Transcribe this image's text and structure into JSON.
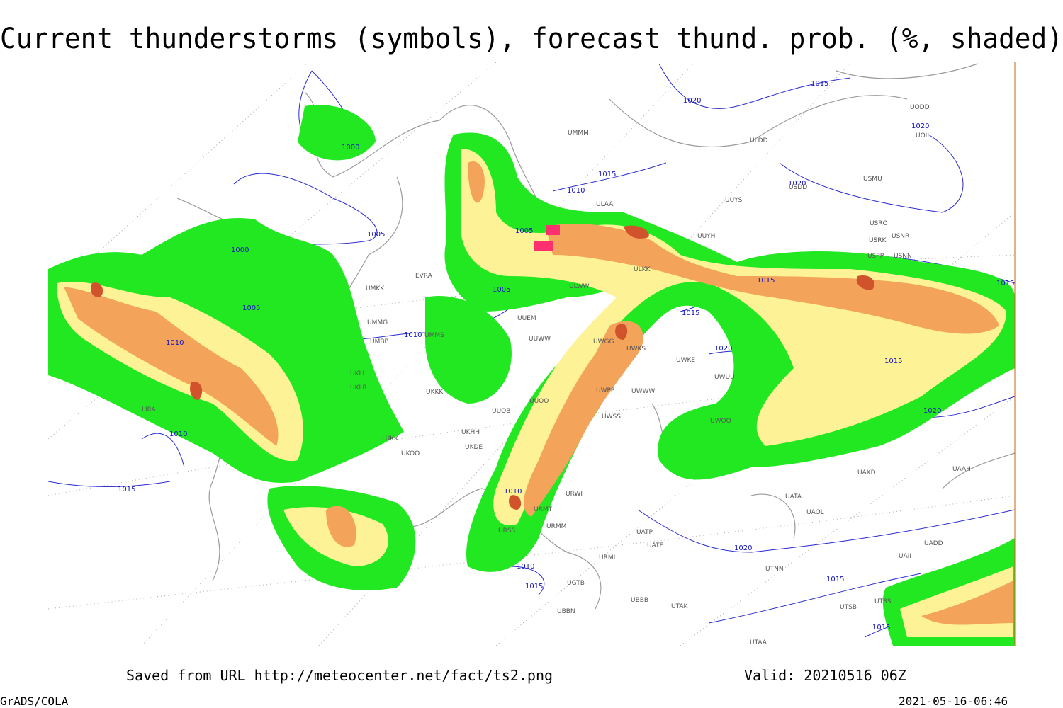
{
  "title": "Current thunderstorms (symbols), forecast thund. prob. (%, shaded)",
  "footer": {
    "source": "Saved from URL http://meteocenter.net/fact/ts2.png",
    "valid": "Valid: 20210516 06Z",
    "software": "GrADS/COLA",
    "timestamp": "2021-05-16-06:46"
  },
  "map": {
    "isobar_labels": [
      1000,
      1005,
      1000,
      1005,
      1010,
      1010,
      1010,
      1015,
      1020,
      1015,
      1020,
      1020,
      1005,
      1005,
      1015,
      1015,
      1015,
      1020,
      1015,
      1020,
      1010,
      1015,
      1010,
      1010,
      1015,
      1020,
      1015,
      1015
    ],
    "stations": [
      "ULDD",
      "USDD",
      "USMU",
      "UUYS",
      "UUYH",
      "USRO",
      "USRK",
      "USNR",
      "USPP",
      "USNN",
      "UODD",
      "UOII",
      "ULAA",
      "ULWW",
      "ULKK",
      "UUEM",
      "UUWW",
      "UMKK",
      "UMMG",
      "UMBB",
      "UMMS",
      "UKLL",
      "UKLR",
      "UKKK",
      "UUOB",
      "UUOO",
      "UKHH",
      "UKDE",
      "LIRA",
      "LUKK",
      "UKOO",
      "URWI",
      "URMT",
      "URMM",
      "URSS",
      "URML",
      "UATP",
      "UATE",
      "UATA",
      "UAOL",
      "UAAH",
      "UAKD",
      "UAII",
      "UADD",
      "UTNN",
      "UTSS",
      "UTSB",
      "UTAA",
      "UTAK",
      "UBBB",
      "UWOO",
      "UWKE",
      "UWUU",
      "UWPP",
      "UWWW",
      "UWSS",
      "UWGG",
      "UWKS",
      "UMMM",
      "EVRA",
      "UGTB",
      "UBBN"
    ]
  }
}
